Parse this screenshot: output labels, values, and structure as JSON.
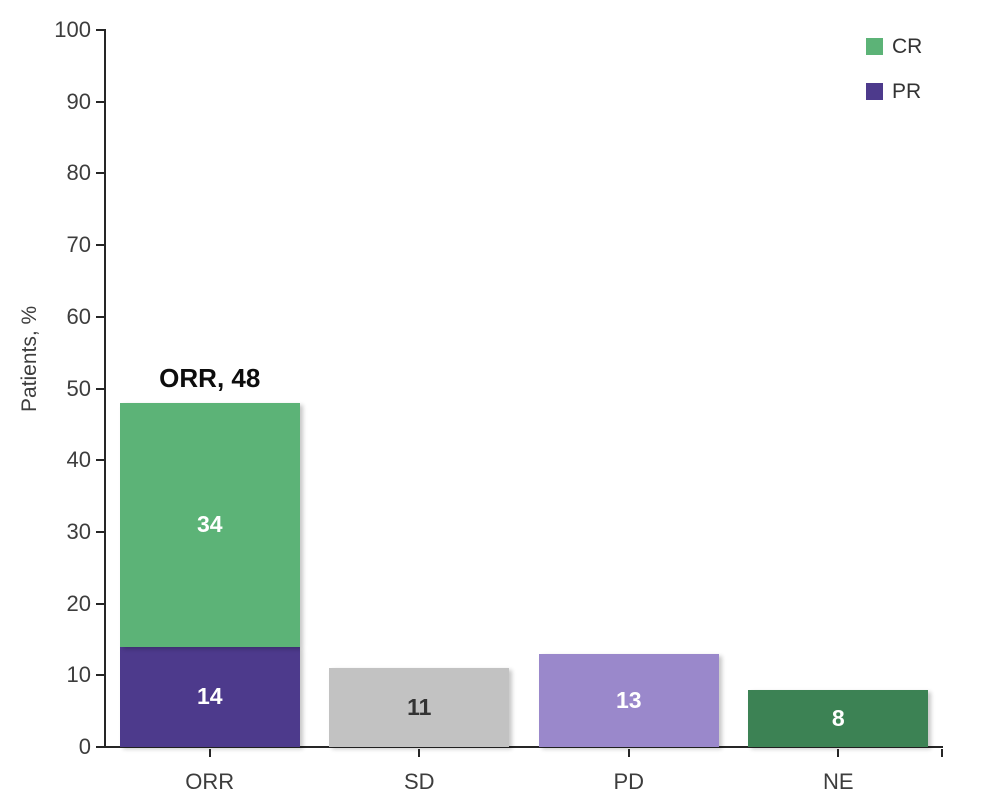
{
  "chart_data": {
    "type": "bar",
    "subtype": "stacked-vertical",
    "title": "",
    "xlabel": "",
    "ylabel": "Patients, %",
    "ylim": [
      0,
      100
    ],
    "ytick_step": 10,
    "grid": false,
    "legend_position": "top-right",
    "categories": [
      "ORR",
      "SD",
      "PD",
      "NE"
    ],
    "bars": [
      {
        "category": "ORR",
        "total": 48,
        "total_label": "ORR, 48",
        "segments": [
          {
            "name": "PR",
            "value": 14,
            "color": "#4d3a8c",
            "label_color": "#ffffff"
          },
          {
            "name": "CR",
            "value": 34,
            "color": "#5cb377",
            "label_color": "#ffffff"
          }
        ]
      },
      {
        "category": "SD",
        "total": 11,
        "segments": [
          {
            "name": "SD",
            "value": 11,
            "color": "#c2c2c2",
            "label_color": "#333333"
          }
        ]
      },
      {
        "category": "PD",
        "total": 13,
        "segments": [
          {
            "name": "PD",
            "value": 13,
            "color": "#9a88cb",
            "label_color": "#ffffff"
          }
        ]
      },
      {
        "category": "NE",
        "total": 8,
        "segments": [
          {
            "name": "NE",
            "value": 8,
            "color": "#3c8254",
            "label_color": "#ffffff"
          }
        ]
      }
    ],
    "legend": [
      {
        "label": "CR",
        "color": "#5cb377"
      },
      {
        "label": "PR",
        "color": "#4d3a8c"
      }
    ],
    "colors": {
      "axis": "#262626",
      "tick_text": "#3d3d3d",
      "total_label_text": "#0d0d0d"
    }
  }
}
